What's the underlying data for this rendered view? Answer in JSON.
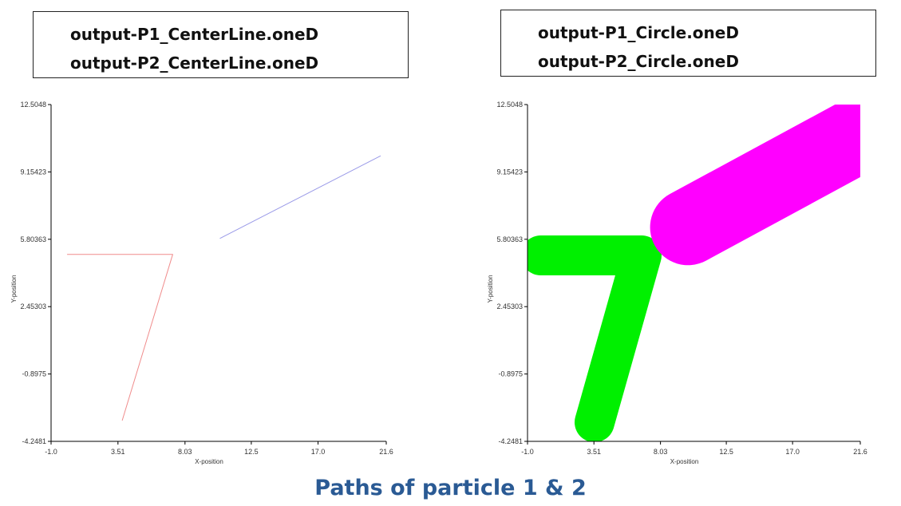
{
  "legends": {
    "left": [
      "output-P1_CenterLine.oneD",
      "output-P2_CenterLine.oneD"
    ],
    "right": [
      "output-P1_Circle.oneD",
      "output-P2_Circle.oneD"
    ]
  },
  "caption": "Paths of particle 1 & 2",
  "chart_data": [
    {
      "type": "line",
      "title": "",
      "xlabel": "X-position",
      "ylabel": "Y-position",
      "xlim": [
        -1.0,
        21.6
      ],
      "ylim": [
        -4.2481,
        12.5048
      ],
      "xticks": [
        "-1.0",
        "3.51",
        "8.03",
        "12.5",
        "17.0",
        "21.6"
      ],
      "yticks": [
        "12.5048",
        "9.15423",
        "5.80363",
        "2.45303",
        "-0.8975",
        "-4.2481"
      ],
      "grid": false,
      "series": [
        {
          "name": "output-P1_CenterLine.oneD",
          "color": "#f08c8c",
          "width": 1,
          "points": [
            [
              0.1,
              5.05
            ],
            [
              7.2,
              5.05
            ],
            [
              3.8,
              -3.2
            ]
          ]
        },
        {
          "name": "output-P2_CenterLine.oneD",
          "color": "#9a9ae8",
          "width": 1,
          "points": [
            [
              10.4,
              5.85
            ],
            [
              21.2,
              9.95
            ]
          ]
        }
      ]
    },
    {
      "type": "line",
      "title": "",
      "xlabel": "X-position",
      "ylabel": "Y-position",
      "xlim": [
        -1.0,
        21.6
      ],
      "ylim": [
        -4.2481,
        12.5048
      ],
      "xticks": [
        "-1.0",
        "3.51",
        "8.03",
        "12.5",
        "17.0",
        "21.6"
      ],
      "yticks": [
        "12.5048",
        "9.15423",
        "5.80363",
        "2.45303",
        "-0.8975",
        "-4.2481"
      ],
      "grid": false,
      "series": [
        {
          "name": "output-P1_Circle.oneD",
          "color": "#00f000",
          "width": 50,
          "points": [
            [
              -0.1,
              5.0
            ],
            [
              6.75,
              5.0
            ],
            [
              3.55,
              -3.3
            ]
          ]
        },
        {
          "name": "output-P2_Circle.oneD",
          "color": "#ff00ff",
          "width": 95,
          "points": [
            [
              9.9,
              6.4
            ],
            [
              21.0,
              10.8
            ]
          ]
        }
      ]
    }
  ]
}
